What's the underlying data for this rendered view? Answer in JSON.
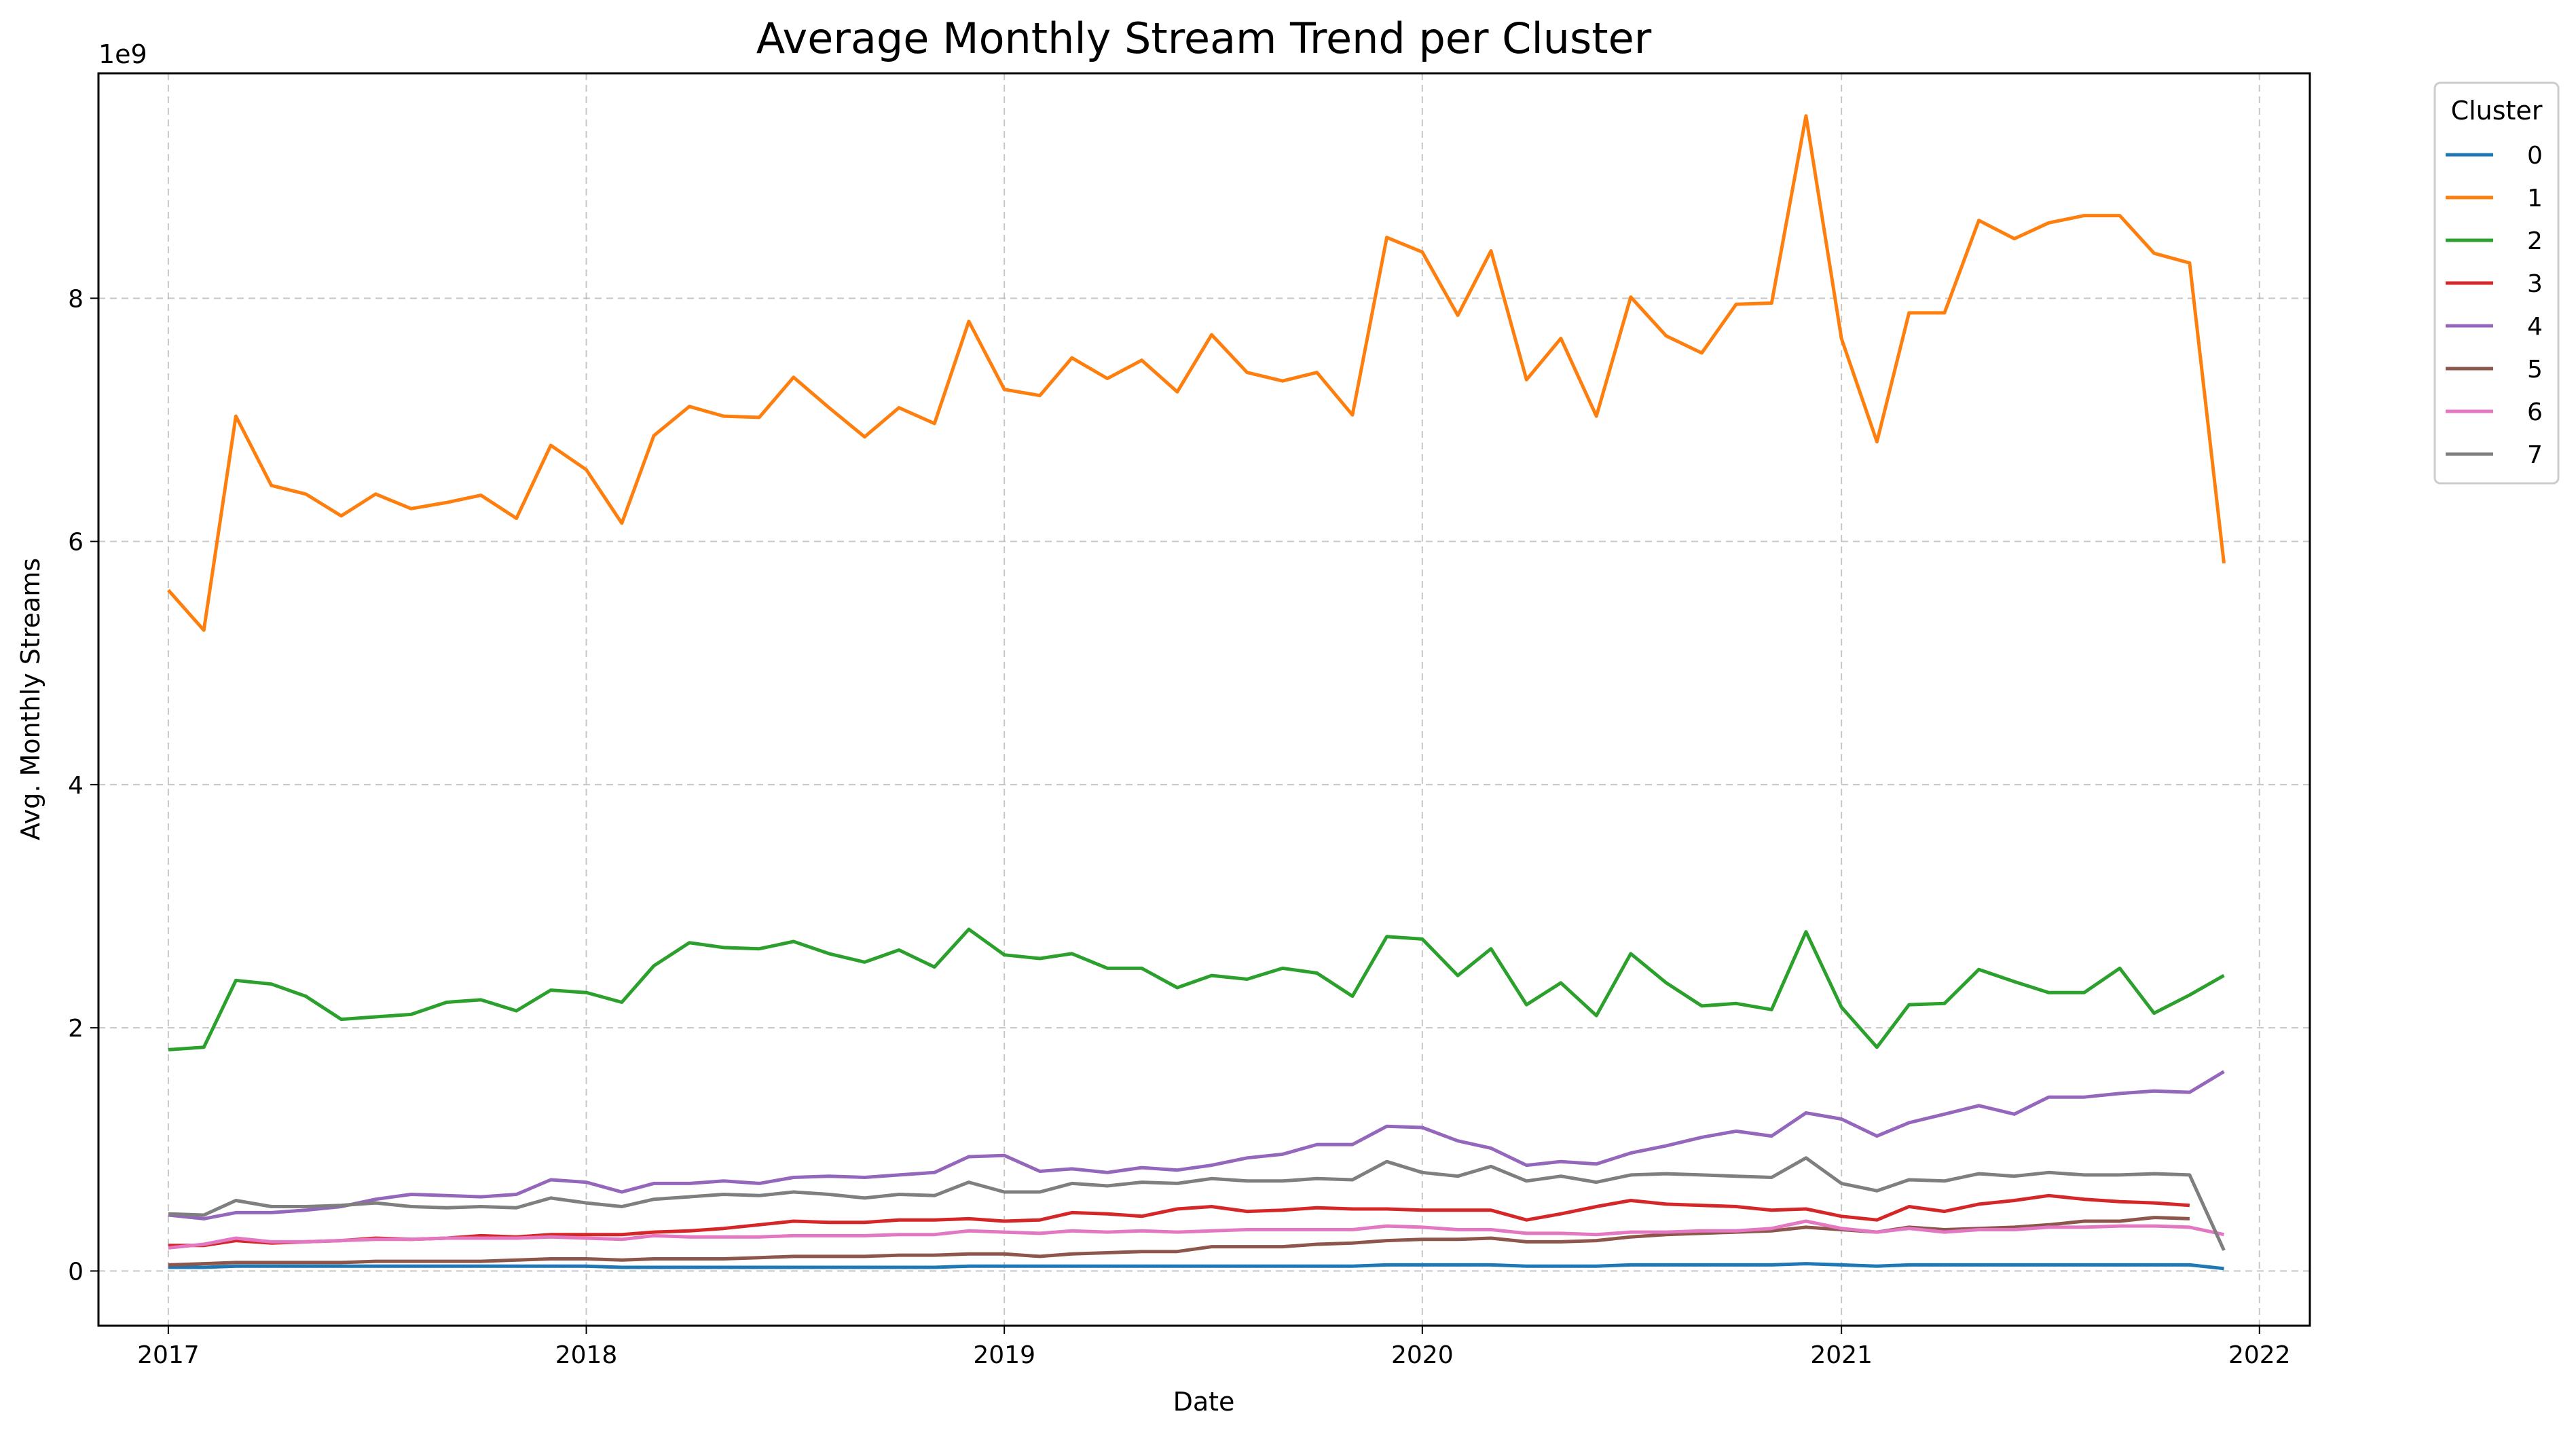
{
  "chart_data": {
    "type": "line",
    "title": "Average Monthly Stream Trend per Cluster",
    "xlabel": "Date",
    "ylabel": "Avg. Monthly Streams",
    "y_offset_label": "1e9",
    "y_scale": 1000000000,
    "xlim": [
      "2016-11-01",
      "2022-02-14"
    ],
    "ylim": [
      -0.45,
      9.85
    ],
    "x_ticks": [
      {
        "date": "2017-01-01",
        "label": "2017"
      },
      {
        "date": "2018-01-01",
        "label": "2018"
      },
      {
        "date": "2019-01-01",
        "label": "2019"
      },
      {
        "date": "2020-01-01",
        "label": "2020"
      },
      {
        "date": "2021-01-01",
        "label": "2021"
      },
      {
        "date": "2022-01-01",
        "label": "2022"
      }
    ],
    "y_ticks": [
      {
        "value": 0,
        "label": "0"
      },
      {
        "value": 2,
        "label": "2"
      },
      {
        "value": 4,
        "label": "4"
      },
      {
        "value": 6,
        "label": "6"
      },
      {
        "value": 8,
        "label": "8"
      }
    ],
    "grid": true,
    "legend": {
      "title": "Cluster",
      "placement": "outside-top-right"
    },
    "x": [
      "2017-01",
      "2017-02",
      "2017-03",
      "2017-04",
      "2017-05",
      "2017-06",
      "2017-07",
      "2017-08",
      "2017-09",
      "2017-10",
      "2017-11",
      "2017-12",
      "2018-01",
      "2018-02",
      "2018-03",
      "2018-04",
      "2018-05",
      "2018-06",
      "2018-07",
      "2018-08",
      "2018-09",
      "2018-10",
      "2018-11",
      "2018-12",
      "2019-01",
      "2019-02",
      "2019-03",
      "2019-04",
      "2019-05",
      "2019-06",
      "2019-07",
      "2019-08",
      "2019-09",
      "2019-10",
      "2019-11",
      "2019-12",
      "2020-01",
      "2020-02",
      "2020-03",
      "2020-04",
      "2020-05",
      "2020-06",
      "2020-07",
      "2020-08",
      "2020-09",
      "2020-10",
      "2020-11",
      "2020-12",
      "2021-01",
      "2021-02",
      "2021-03",
      "2021-04",
      "2021-05",
      "2021-06",
      "2021-07",
      "2021-08",
      "2021-09",
      "2021-10",
      "2021-11",
      "2021-12"
    ],
    "series": [
      {
        "name": "0",
        "color": "#1f77b4",
        "values": [
          0.03,
          0.03,
          0.04,
          0.04,
          0.04,
          0.04,
          0.04,
          0.04,
          0.04,
          0.04,
          0.04,
          0.04,
          0.04,
          0.03,
          0.03,
          0.03,
          0.03,
          0.03,
          0.03,
          0.03,
          0.03,
          0.03,
          0.03,
          0.04,
          0.04,
          0.04,
          0.04,
          0.04,
          0.04,
          0.04,
          0.04,
          0.04,
          0.04,
          0.04,
          0.04,
          0.05,
          0.05,
          0.05,
          0.05,
          0.04,
          0.04,
          0.04,
          0.05,
          0.05,
          0.05,
          0.05,
          0.05,
          0.06,
          0.05,
          0.04,
          0.05,
          0.05,
          0.05,
          0.05,
          0.05,
          0.05,
          0.05,
          0.05,
          0.05,
          0.02
        ]
      },
      {
        "name": "1",
        "color": "#ff7f0e",
        "values": [
          5.6,
          5.27,
          7.03,
          6.46,
          6.39,
          6.21,
          6.39,
          6.27,
          6.32,
          6.38,
          6.19,
          6.79,
          6.59,
          6.15,
          6.87,
          7.11,
          7.03,
          7.02,
          7.35,
          7.1,
          6.86,
          7.1,
          6.97,
          7.81,
          7.25,
          7.2,
          7.51,
          7.34,
          7.49,
          7.23,
          7.7,
          7.39,
          7.32,
          7.39,
          7.04,
          8.5,
          8.38,
          7.86,
          8.39,
          7.33,
          7.67,
          7.03,
          8.01,
          7.69,
          7.55,
          7.95,
          7.96,
          9.5,
          7.67,
          6.82,
          7.88,
          7.88,
          8.64,
          8.49,
          8.62,
          8.68,
          8.68,
          8.37,
          8.29,
          5.82
        ]
      },
      {
        "name": "2",
        "color": "#2ca02c",
        "values": [
          1.82,
          1.84,
          2.39,
          2.36,
          2.26,
          2.07,
          2.09,
          2.11,
          2.21,
          2.23,
          2.14,
          2.31,
          2.29,
          2.21,
          2.51,
          2.7,
          2.66,
          2.65,
          2.71,
          2.61,
          2.54,
          2.64,
          2.5,
          2.81,
          2.6,
          2.57,
          2.61,
          2.49,
          2.49,
          2.33,
          2.43,
          2.4,
          2.49,
          2.45,
          2.26,
          2.75,
          2.73,
          2.43,
          2.65,
          2.19,
          2.37,
          2.1,
          2.61,
          2.37,
          2.18,
          2.2,
          2.15,
          2.79,
          2.17,
          1.84,
          2.19,
          2.2,
          2.48,
          2.38,
          2.29,
          2.29,
          2.49,
          2.12,
          2.27,
          2.43
        ]
      },
      {
        "name": "3",
        "color": "#d62728",
        "values": [
          0.21,
          0.21,
          0.25,
          0.23,
          0.24,
          0.25,
          0.27,
          0.26,
          0.27,
          0.29,
          0.28,
          0.3,
          0.3,
          0.3,
          0.32,
          0.33,
          0.35,
          0.38,
          0.41,
          0.4,
          0.4,
          0.42,
          0.42,
          0.43,
          0.41,
          0.42,
          0.48,
          0.47,
          0.45,
          0.51,
          0.53,
          0.49,
          0.5,
          0.52,
          0.51,
          0.51,
          0.5,
          0.5,
          0.5,
          0.42,
          0.47,
          0.53,
          0.58,
          0.55,
          0.54,
          0.53,
          0.5,
          0.51,
          0.45,
          0.42,
          0.53,
          0.49,
          0.55,
          0.58,
          0.62,
          0.59,
          0.57,
          0.56,
          0.54,
          null
        ]
      },
      {
        "name": "4",
        "color": "#9467bd",
        "values": [
          0.46,
          0.43,
          0.48,
          0.48,
          0.5,
          0.53,
          0.59,
          0.63,
          0.62,
          0.61,
          0.63,
          0.75,
          0.73,
          0.65,
          0.72,
          0.72,
          0.74,
          0.72,
          0.77,
          0.78,
          0.77,
          0.79,
          0.81,
          0.94,
          0.95,
          0.82,
          0.84,
          0.81,
          0.85,
          0.83,
          0.87,
          0.93,
          0.96,
          1.04,
          1.04,
          1.19,
          1.18,
          1.07,
          1.01,
          0.87,
          0.9,
          0.88,
          0.97,
          1.03,
          1.1,
          1.15,
          1.11,
          1.3,
          1.25,
          1.11,
          1.22,
          1.29,
          1.36,
          1.29,
          1.43,
          1.43,
          1.46,
          1.48,
          1.47,
          1.64
        ]
      },
      {
        "name": "5",
        "color": "#8c564b",
        "values": [
          0.05,
          0.06,
          0.07,
          0.07,
          0.07,
          0.07,
          0.08,
          0.08,
          0.08,
          0.08,
          0.09,
          0.1,
          0.1,
          0.09,
          0.1,
          0.1,
          0.1,
          0.11,
          0.12,
          0.12,
          0.12,
          0.13,
          0.13,
          0.14,
          0.14,
          0.12,
          0.14,
          0.15,
          0.16,
          0.16,
          0.2,
          0.2,
          0.2,
          0.22,
          0.23,
          0.25,
          0.26,
          0.26,
          0.27,
          0.24,
          0.24,
          0.25,
          0.28,
          0.3,
          0.31,
          0.32,
          0.33,
          0.36,
          0.34,
          0.32,
          0.36,
          0.34,
          0.35,
          0.36,
          0.38,
          0.41,
          0.41,
          0.44,
          0.43,
          null
        ]
      },
      {
        "name": "6",
        "color": "#e377c2",
        "values": [
          0.19,
          0.22,
          0.27,
          0.24,
          0.24,
          0.25,
          0.26,
          0.26,
          0.27,
          0.27,
          0.27,
          0.28,
          0.27,
          0.26,
          0.29,
          0.28,
          0.28,
          0.28,
          0.29,
          0.29,
          0.29,
          0.3,
          0.3,
          0.33,
          0.32,
          0.31,
          0.33,
          0.32,
          0.33,
          0.32,
          0.33,
          0.34,
          0.34,
          0.34,
          0.34,
          0.37,
          0.36,
          0.34,
          0.34,
          0.31,
          0.31,
          0.3,
          0.32,
          0.32,
          0.33,
          0.33,
          0.35,
          0.41,
          0.35,
          0.32,
          0.35,
          0.32,
          0.34,
          0.34,
          0.36,
          0.36,
          0.37,
          0.37,
          0.36,
          0.3
        ]
      },
      {
        "name": "7",
        "color": "#7f7f7f",
        "values": [
          0.47,
          0.46,
          0.58,
          0.53,
          0.53,
          0.54,
          0.56,
          0.53,
          0.52,
          0.53,
          0.52,
          0.6,
          0.56,
          0.53,
          0.59,
          0.61,
          0.63,
          0.62,
          0.65,
          0.63,
          0.6,
          0.63,
          0.62,
          0.73,
          0.65,
          0.65,
          0.72,
          0.7,
          0.73,
          0.72,
          0.76,
          0.74,
          0.74,
          0.76,
          0.75,
          0.9,
          0.81,
          0.78,
          0.86,
          0.74,
          0.78,
          0.73,
          0.79,
          0.8,
          0.79,
          0.78,
          0.77,
          0.93,
          0.72,
          0.66,
          0.75,
          0.74,
          0.8,
          0.78,
          0.81,
          0.79,
          0.79,
          0.8,
          0.79,
          0.17
        ]
      }
    ]
  }
}
